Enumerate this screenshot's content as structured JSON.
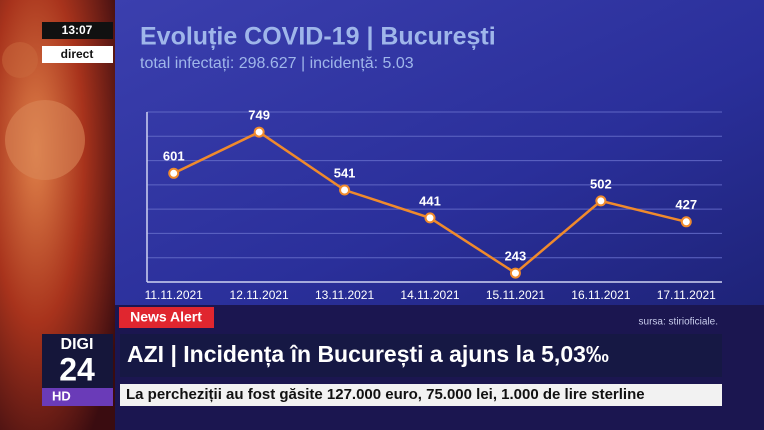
{
  "chart_data": {
    "type": "line",
    "title": "Evoluție COVID-19 | București",
    "subtitle": "total infectați: 298.627 | incidență: 5.03",
    "categories": [
      "11.11.2021",
      "12.11.2021",
      "13.11.2021",
      "14.11.2021",
      "15.11.2021",
      "16.11.2021",
      "17.11.2021"
    ],
    "values": [
      601,
      749,
      541,
      441,
      243,
      502,
      427
    ],
    "color": "#f08a2c",
    "ylim": [
      211,
      821
    ],
    "grid": true,
    "source": "sursa: stirioficiale."
  },
  "overlay": {
    "clock": "13:07",
    "live": "direct",
    "alert": "News Alert",
    "headline": "AZI | Incidența în București a ajuns la 5,03‰",
    "ticker": "La percheziții au fost găsite 127.000 euro, 75.000 lei, 1.000 de lire sterline",
    "logo": {
      "top": "DIGI",
      "number": "24",
      "hd": "HD"
    }
  }
}
